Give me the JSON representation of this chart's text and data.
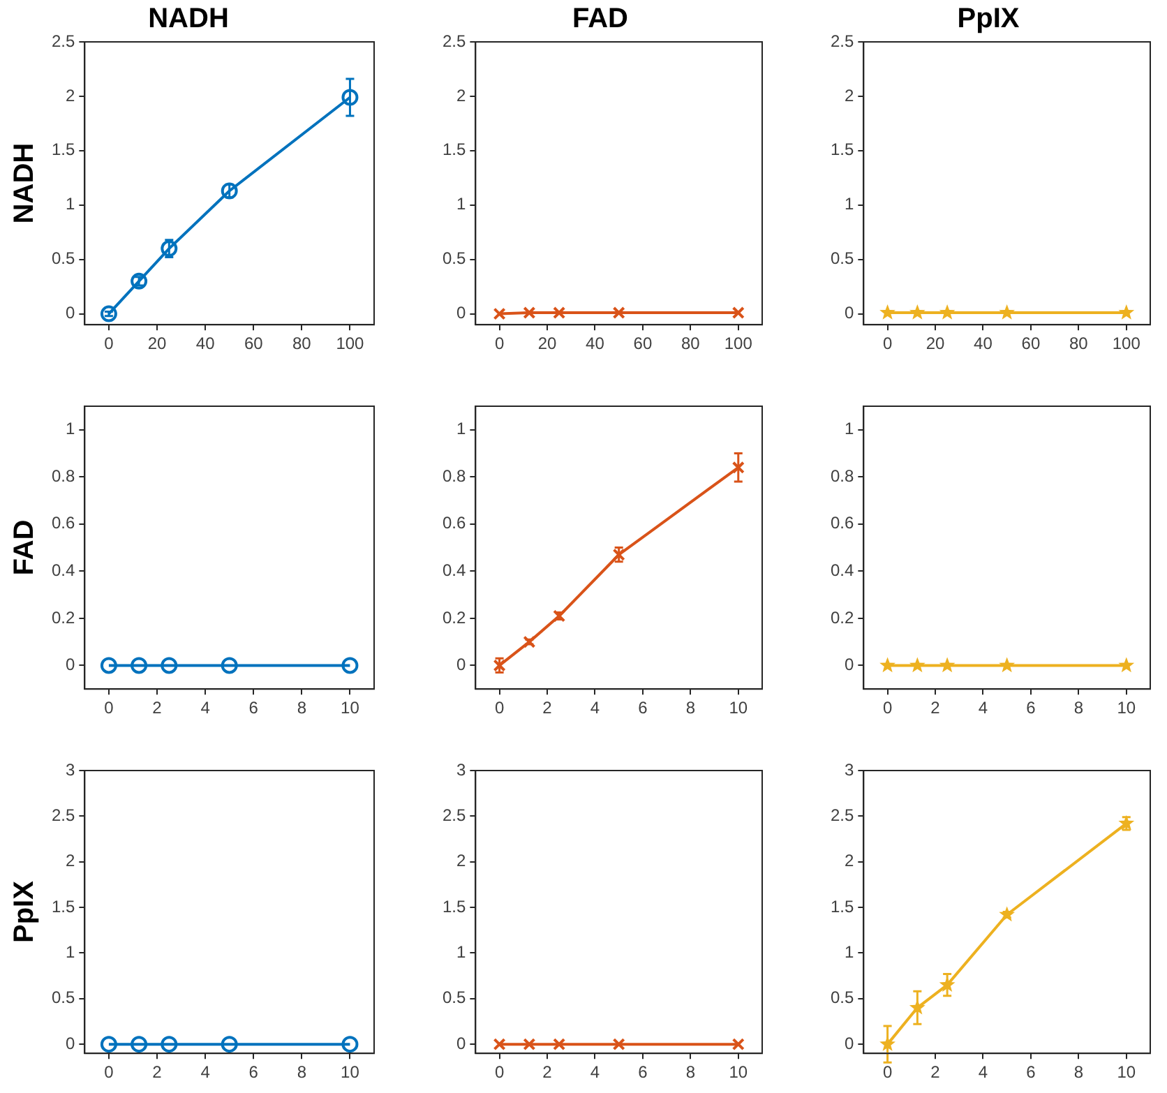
{
  "chart_data": [
    {
      "type": "line",
      "title": "NADH",
      "ylabel": "NADH",
      "x": [
        0,
        12.5,
        25,
        50,
        100
      ],
      "xlim": [
        -10,
        110
      ],
      "ylim": [
        -0.1,
        2.5
      ],
      "xticks": [
        0,
        20,
        40,
        60,
        80,
        100
      ],
      "yticks": [
        0,
        0.5,
        1,
        1.5,
        2,
        2.5
      ],
      "marker": "circle",
      "grid": false,
      "legend": false,
      "series": [
        {
          "color": "#0072bd",
          "values": [
            0,
            0.3,
            0.6,
            1.13,
            1.99
          ],
          "errors": [
            0.02,
            0.04,
            0.08,
            0.06,
            0.17
          ]
        }
      ]
    },
    {
      "type": "line",
      "title": "FAD",
      "x": [
        0,
        12.5,
        25,
        50,
        100
      ],
      "xlim": [
        -10,
        110
      ],
      "ylim": [
        -0.1,
        2.5
      ],
      "xticks": [
        0,
        20,
        40,
        60,
        80,
        100
      ],
      "yticks": [
        0,
        0.5,
        1,
        1.5,
        2,
        2.5
      ],
      "marker": "cross",
      "grid": false,
      "legend": false,
      "series": [
        {
          "color": "#d95319",
          "values": [
            0,
            0.01,
            0.01,
            0.01,
            0.01
          ]
        }
      ]
    },
    {
      "type": "line",
      "title": "PpIX",
      "x": [
        0,
        12.5,
        25,
        50,
        100
      ],
      "xlim": [
        -10,
        110
      ],
      "ylim": [
        -0.1,
        2.5
      ],
      "xticks": [
        0,
        20,
        40,
        60,
        80,
        100
      ],
      "yticks": [
        0,
        0.5,
        1,
        1.5,
        2,
        2.5
      ],
      "marker": "star",
      "grid": false,
      "legend": false,
      "series": [
        {
          "color": "#edb120",
          "values": [
            0.01,
            0.01,
            0.01,
            0.01,
            0.01
          ]
        }
      ]
    },
    {
      "type": "line",
      "ylabel": "FAD",
      "x": [
        0,
        1.25,
        2.5,
        5,
        10
      ],
      "xlim": [
        -1,
        11
      ],
      "ylim": [
        -0.1,
        1.1
      ],
      "xticks": [
        0,
        2,
        4,
        6,
        8,
        10
      ],
      "yticks": [
        0,
        0.2,
        0.4,
        0.6,
        0.8,
        1
      ],
      "marker": "circle",
      "grid": false,
      "legend": false,
      "series": [
        {
          "color": "#0072bd",
          "values": [
            0,
            0,
            0,
            0,
            0
          ]
        }
      ]
    },
    {
      "type": "line",
      "x": [
        0,
        1.25,
        2.5,
        5,
        10
      ],
      "xlim": [
        -1,
        11
      ],
      "ylim": [
        -0.1,
        1.1
      ],
      "xticks": [
        0,
        2,
        4,
        6,
        8,
        10
      ],
      "yticks": [
        0,
        0.2,
        0.4,
        0.6,
        0.8,
        1
      ],
      "marker": "cross",
      "grid": false,
      "legend": false,
      "series": [
        {
          "color": "#d95319",
          "values": [
            0,
            0.1,
            0.21,
            0.47,
            0.84
          ],
          "errors": [
            0.03,
            0.01,
            0.015,
            0.03,
            0.06
          ]
        }
      ]
    },
    {
      "type": "line",
      "x": [
        0,
        1.25,
        2.5,
        5,
        10
      ],
      "xlim": [
        -1,
        11
      ],
      "ylim": [
        -0.1,
        1.1
      ],
      "xticks": [
        0,
        2,
        4,
        6,
        8,
        10
      ],
      "yticks": [
        0,
        0.2,
        0.4,
        0.6,
        0.8,
        1
      ],
      "marker": "star",
      "grid": false,
      "legend": false,
      "series": [
        {
          "color": "#edb120",
          "values": [
            0,
            0,
            0,
            0,
            0
          ]
        }
      ]
    },
    {
      "type": "line",
      "ylabel": "PpIX",
      "x": [
        0,
        1.25,
        2.5,
        5,
        10
      ],
      "xlim": [
        -1,
        11
      ],
      "ylim": [
        -0.1,
        3
      ],
      "xticks": [
        0,
        2,
        4,
        6,
        8,
        10
      ],
      "yticks": [
        0,
        0.5,
        1,
        1.5,
        2,
        2.5,
        3
      ],
      "marker": "circle",
      "grid": false,
      "legend": false,
      "series": [
        {
          "color": "#0072bd",
          "values": [
            0,
            0,
            0,
            0,
            0
          ]
        }
      ]
    },
    {
      "type": "line",
      "x": [
        0,
        1.25,
        2.5,
        5,
        10
      ],
      "xlim": [
        -1,
        11
      ],
      "ylim": [
        -0.1,
        3
      ],
      "xticks": [
        0,
        2,
        4,
        6,
        8,
        10
      ],
      "yticks": [
        0,
        0.5,
        1,
        1.5,
        2,
        2.5,
        3
      ],
      "marker": "cross",
      "grid": false,
      "legend": false,
      "series": [
        {
          "color": "#d95319",
          "values": [
            0,
            0,
            0,
            0,
            0
          ]
        }
      ]
    },
    {
      "type": "line",
      "x": [
        0,
        1.25,
        2.5,
        5,
        10
      ],
      "xlim": [
        -1,
        11
      ],
      "ylim": [
        -0.1,
        3
      ],
      "xticks": [
        0,
        2,
        4,
        6,
        8,
        10
      ],
      "yticks": [
        0,
        0.5,
        1,
        1.5,
        2,
        2.5,
        3
      ],
      "marker": "star",
      "grid": false,
      "legend": false,
      "series": [
        {
          "color": "#edb120",
          "values": [
            0,
            0.4,
            0.65,
            1.42,
            2.42
          ],
          "errors": [
            0.2,
            0.18,
            0.12,
            0.03,
            0.07
          ]
        }
      ]
    }
  ]
}
